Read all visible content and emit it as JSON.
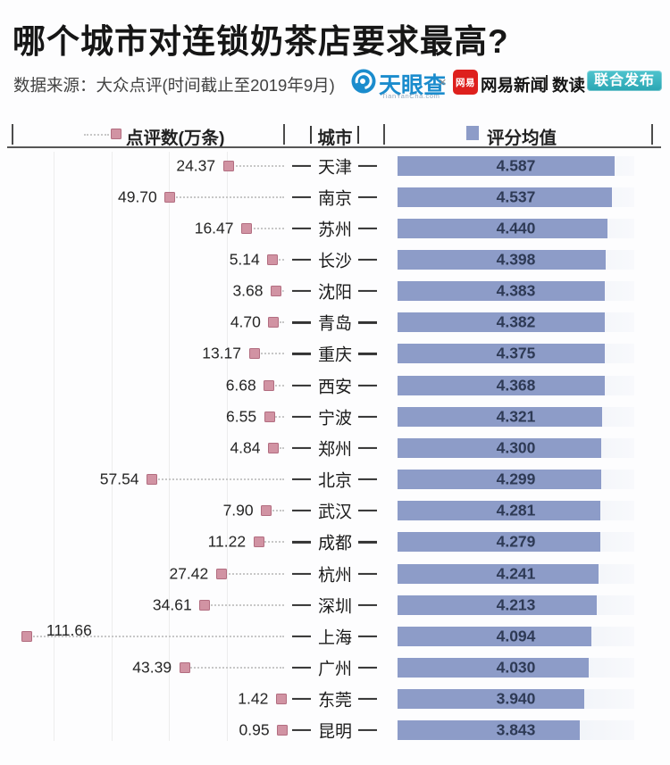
{
  "header": {
    "title": "哪个城市对连锁奶茶店要求最高?",
    "subtitle": "数据来源：大众点评(时间截止至2019年9月)"
  },
  "logos": {
    "tianyancha": "天眼查",
    "tianyancha_domain": "TianYanCha.com",
    "cross": "×",
    "netease_icon_label": "网易",
    "netease_news": "网易新闻",
    "shudu": "数读",
    "badge": "联合发布"
  },
  "legend": {
    "reviews": "点评数(万条)",
    "city": "城市",
    "rating": "评分均值"
  },
  "brand_colors": {
    "tianyancha_blue": "#1b8ccd",
    "netease_red": "#de201d",
    "badge_teal_top": "#4fc4ce",
    "badge_teal_bottom": "#2aa6b3"
  },
  "chart_data": {
    "type": "bar",
    "orientation": "horizontal",
    "title": "哪个城市对连锁奶茶店要求最高?",
    "legend_position": "top",
    "grid": "faint-vertical",
    "categories": [
      "天津",
      "南京",
      "苏州",
      "长沙",
      "沈阳",
      "青岛",
      "重庆",
      "西安",
      "宁波",
      "郑州",
      "北京",
      "武汉",
      "成都",
      "杭州",
      "深圳",
      "上海",
      "广州",
      "东莞",
      "昆明"
    ],
    "series": [
      {
        "name": "点评数(万条)",
        "style": "dot-left",
        "values": [
          24.37,
          49.7,
          16.47,
          5.14,
          3.68,
          4.7,
          13.17,
          6.68,
          6.55,
          4.84,
          57.54,
          7.9,
          11.22,
          27.42,
          34.61,
          111.66,
          43.39,
          1.42,
          0.95
        ],
        "labels": [
          "24.37",
          "49.70",
          "16.47",
          "5.14",
          "3.68",
          "4.70",
          "13.17",
          "6.68",
          "6.55",
          "4.84",
          "57.54",
          "7.90",
          "11.22",
          "27.42",
          "34.61",
          "111.66",
          "43.39",
          "1.42",
          "0.95"
        ]
      },
      {
        "name": "评分均值",
        "style": "bar-right",
        "values": [
          4.587,
          4.537,
          4.44,
          4.398,
          4.383,
          4.382,
          4.375,
          4.368,
          4.321,
          4.3,
          4.299,
          4.281,
          4.279,
          4.241,
          4.213,
          4.094,
          4.03,
          3.94,
          3.843
        ],
        "labels": [
          "4.587",
          "4.537",
          "4.440",
          "4.398",
          "4.383",
          "4.382",
          "4.375",
          "4.368",
          "4.321",
          "4.300",
          "4.299",
          "4.281",
          "4.279",
          "4.241",
          "4.213",
          "4.094",
          "4.030",
          "3.940",
          "3.843"
        ]
      }
    ],
    "review_axis": {
      "min": 0,
      "max": 120,
      "direction": "right-to-left",
      "gridline_step": 25
    },
    "rating_axis": {
      "min": 0,
      "max": 5
    },
    "colors": {
      "dot_fill": "#d193a3",
      "dot_border": "#b26d80",
      "bar_fill": "#8d9cc8",
      "track_start": "#d9dfec",
      "track_end": "#f8f9fc",
      "rating_text": "#2e3a55",
      "connector": "#c7c7c7"
    }
  }
}
